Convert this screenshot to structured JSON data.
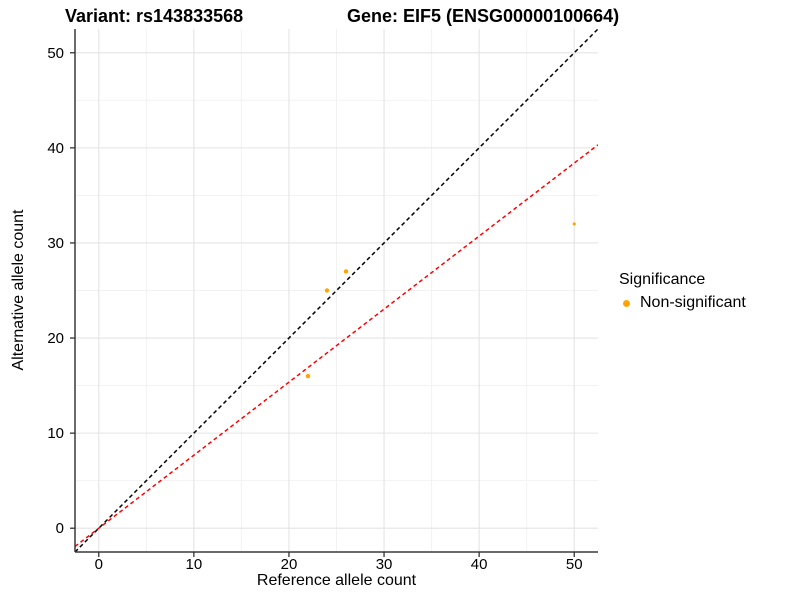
{
  "chart_data": {
    "type": "scatter",
    "title_variant": "Variant: rs143833568",
    "title_gene": "Gene: EIF5 (ENSG00000100664)",
    "xlabel": "Reference allele count",
    "ylabel": "Alternative allele count",
    "xlim": [
      -2.5,
      52.5
    ],
    "ylim": [
      -2.5,
      52.5
    ],
    "x_ticks": [
      0,
      10,
      20,
      30,
      40,
      50
    ],
    "y_ticks": [
      0,
      10,
      20,
      30,
      40,
      50
    ],
    "x_minor_ticks": [
      5,
      15,
      25,
      35,
      45
    ],
    "y_minor_ticks": [
      5,
      15,
      25,
      35,
      45
    ],
    "grid": true,
    "points": [
      {
        "x": 22,
        "y": 16,
        "size": 2.2
      },
      {
        "x": 24,
        "y": 25,
        "size": 2.2
      },
      {
        "x": 26,
        "y": 27,
        "size": 2.2
      },
      {
        "x": 50,
        "y": 32,
        "size": 1.6
      }
    ],
    "point_color": "#FFA500",
    "lines": [
      {
        "name": "identity-line",
        "slope": 1,
        "intercept": 0,
        "color": "#000000",
        "style": "dashed"
      },
      {
        "name": "fit-line",
        "slope": 0.768,
        "intercept": 0,
        "color": "#FF0000",
        "style": "dashed"
      }
    ],
    "colors": {
      "grid_major": "#E4E4E4",
      "grid_minor": "#F1F1F1",
      "axis_line": "#3A3A3A",
      "tick_mark": "#333333",
      "text": "#000000"
    },
    "legend": {
      "position": "right",
      "title": "Significance",
      "items": [
        {
          "label": "Non-significant",
          "color": "#FFA500"
        }
      ]
    }
  }
}
